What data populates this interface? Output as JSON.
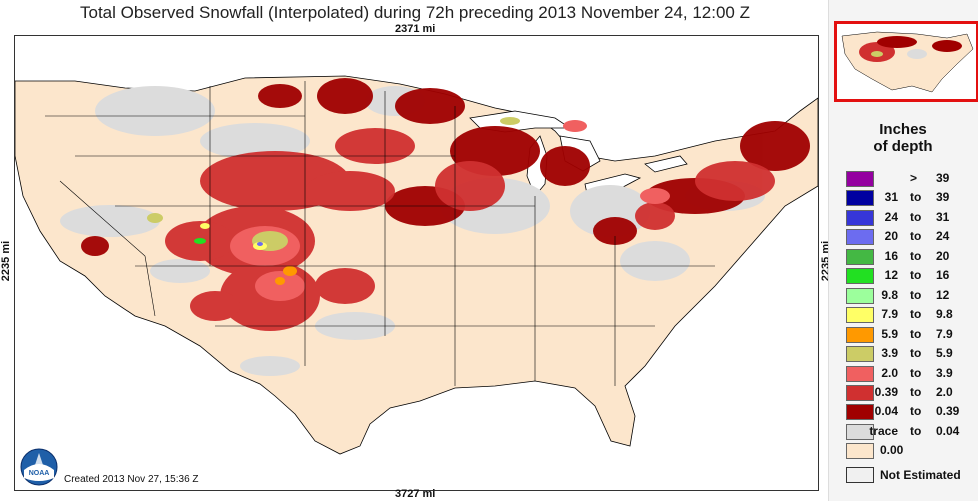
{
  "title": "Total Observed Snowfall (Interpolated) during 72h preceding 2013 November 24, 12:00 Z",
  "distances": {
    "top": "2371 mi",
    "bottom": "3727 mi",
    "left": "2235 mi",
    "right": "2235 mi"
  },
  "created": "Created 2013 Nov 27, 15:36 Z",
  "logo_text": "NOAA",
  "legend": {
    "title_line1": "Inches",
    "title_line2": "of depth",
    "items": [
      {
        "low": "",
        "to": ">",
        "high": "39",
        "color": "#9400a0"
      },
      {
        "low": "31",
        "to": "to",
        "high": "39",
        "color": "#0000a0"
      },
      {
        "low": "24",
        "to": "to",
        "high": "31",
        "color": "#3636d8"
      },
      {
        "low": "20",
        "to": "to",
        "high": "24",
        "color": "#6c6cf0"
      },
      {
        "low": "16",
        "to": "to",
        "high": "20",
        "color": "#44b844"
      },
      {
        "low": "12",
        "to": "to",
        "high": "16",
        "color": "#22e022"
      },
      {
        "low": "9.8",
        "to": "to",
        "high": "12",
        "color": "#9cff9c"
      },
      {
        "low": "7.9",
        "to": "to",
        "high": "9.8",
        "color": "#ffff66"
      },
      {
        "low": "5.9",
        "to": "to",
        "high": "7.9",
        "color": "#ff9900"
      },
      {
        "low": "3.9",
        "to": "to",
        "high": "5.9",
        "color": "#cccc66"
      },
      {
        "low": "2.0",
        "to": "to",
        "high": "3.9",
        "color": "#f06060"
      },
      {
        "low": "0.39",
        "to": "to",
        "high": "2.0",
        "color": "#d03030"
      },
      {
        "low": "0.04",
        "to": "to",
        "high": "0.39",
        "color": "#a00000"
      },
      {
        "low": "trace",
        "to": "to",
        "high": "0.04",
        "color": "#dcdcdc"
      },
      {
        "low": "0.00",
        "to": "",
        "high": "",
        "color": "#fce6cc"
      }
    ],
    "not_estimated": "Not Estimated"
  },
  "colors": {
    "land_bg": "#fce6cc",
    "water": "#ffffff",
    "border": "#000000"
  }
}
